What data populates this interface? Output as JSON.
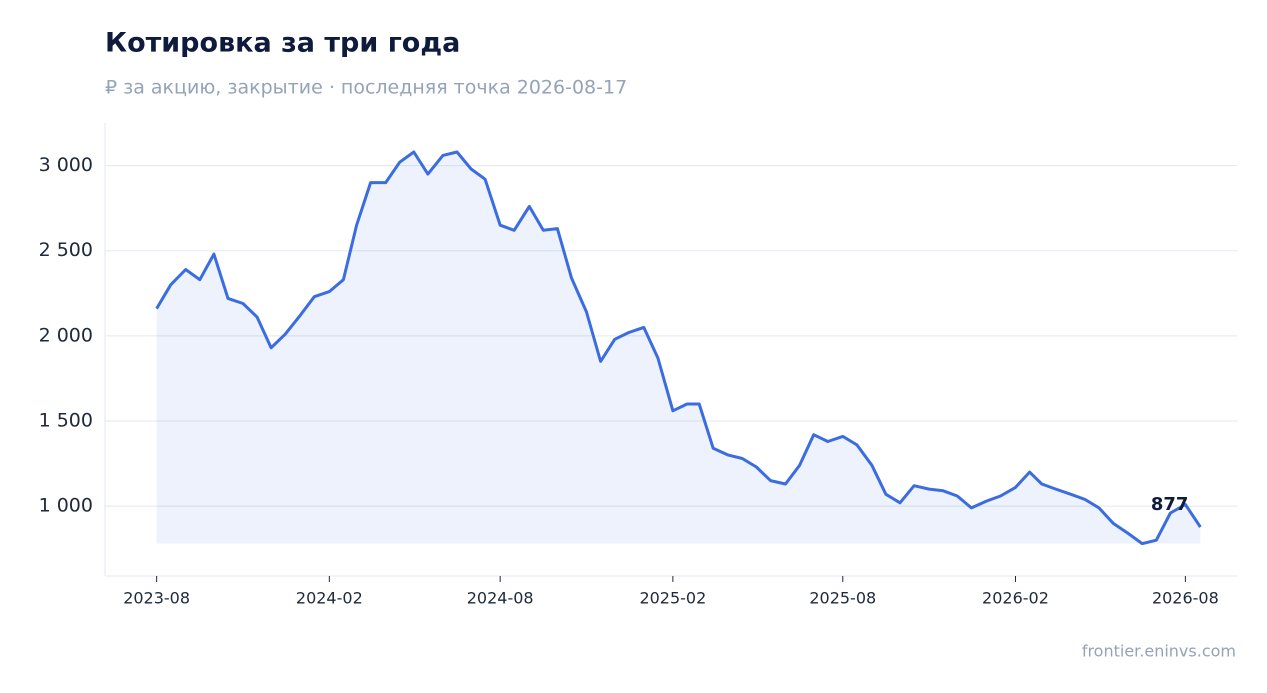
{
  "chart_data": {
    "type": "line",
    "title": "Котировка за три года",
    "subtitle": "₽ за акцию, закрытие · последняя точка 2026-08-17",
    "source": "frontier.eninvs.com",
    "x": [
      "2023-08-01",
      "2023-08-16",
      "2023-09-01",
      "2023-09-16",
      "2023-10-01",
      "2023-10-16",
      "2023-11-01",
      "2023-11-16",
      "2023-12-01",
      "2023-12-16",
      "2024-01-01",
      "2024-01-16",
      "2024-02-01",
      "2024-02-16",
      "2024-03-01",
      "2024-03-16",
      "2024-04-01",
      "2024-04-16",
      "2024-05-01",
      "2024-05-16",
      "2024-06-01",
      "2024-06-16",
      "2024-07-01",
      "2024-07-16",
      "2024-08-01",
      "2024-08-16",
      "2024-09-01",
      "2024-09-16",
      "2024-10-01",
      "2024-10-16",
      "2024-11-01",
      "2024-11-16",
      "2024-12-01",
      "2024-12-16",
      "2025-01-01",
      "2025-01-16",
      "2025-02-01",
      "2025-02-16",
      "2025-03-01",
      "2025-03-16",
      "2025-04-01",
      "2025-04-16",
      "2025-05-01",
      "2025-05-16",
      "2025-06-01",
      "2025-06-16",
      "2025-07-01",
      "2025-07-16",
      "2025-08-01",
      "2025-08-16",
      "2025-09-01",
      "2025-09-16",
      "2025-10-01",
      "2025-10-16",
      "2025-11-01",
      "2025-11-16",
      "2025-12-01",
      "2025-12-16",
      "2026-01-01",
      "2026-01-16",
      "2026-02-01",
      "2026-02-16",
      "2026-03-01",
      "2026-03-16",
      "2026-04-01",
      "2026-04-16",
      "2026-05-01",
      "2026-05-16",
      "2026-06-01",
      "2026-06-16",
      "2026-07-01",
      "2026-07-16",
      "2026-08-01",
      "2026-08-17"
    ],
    "series": [
      {
        "color": "#3b6ce0",
        "values": [
          2160,
          2300,
          2390,
          2330,
          2480,
          2220,
          2190,
          2110,
          1930,
          2010,
          2120,
          2230,
          2260,
          2330,
          2650,
          2900,
          2900,
          3020,
          3080,
          2950,
          3060,
          3080,
          2980,
          2920,
          2650,
          2620,
          2760,
          2620,
          2630,
          2340,
          2140,
          1850,
          1980,
          2020,
          2050,
          1870,
          1560,
          1600,
          1600,
          1340,
          1300,
          1280,
          1230,
          1150,
          1130,
          1240,
          1420,
          1380,
          1410,
          1360,
          1240,
          1070,
          1020,
          1120,
          1100,
          1090,
          1060,
          990,
          1030,
          1060,
          1110,
          1200,
          1130,
          1100,
          1070,
          1040,
          990,
          900,
          840,
          780,
          800,
          960,
          1010,
          877
        ]
      }
    ],
    "xlim": [
      "2023-06-07",
      "2026-09-25"
    ],
    "xticks": [
      "2023-08",
      "2024-02",
      "2024-08",
      "2025-02",
      "2025-08",
      "2026-02",
      "2026-08"
    ],
    "ylim": [
      590,
      3250
    ],
    "yticks": [
      {
        "value": 1000,
        "label": "1 000"
      },
      {
        "value": 1500,
        "label": "1 500"
      },
      {
        "value": 2000,
        "label": "2 000"
      },
      {
        "value": 2500,
        "label": "2 500"
      },
      {
        "value": 3000,
        "label": "3 000"
      }
    ],
    "grid": true
  }
}
